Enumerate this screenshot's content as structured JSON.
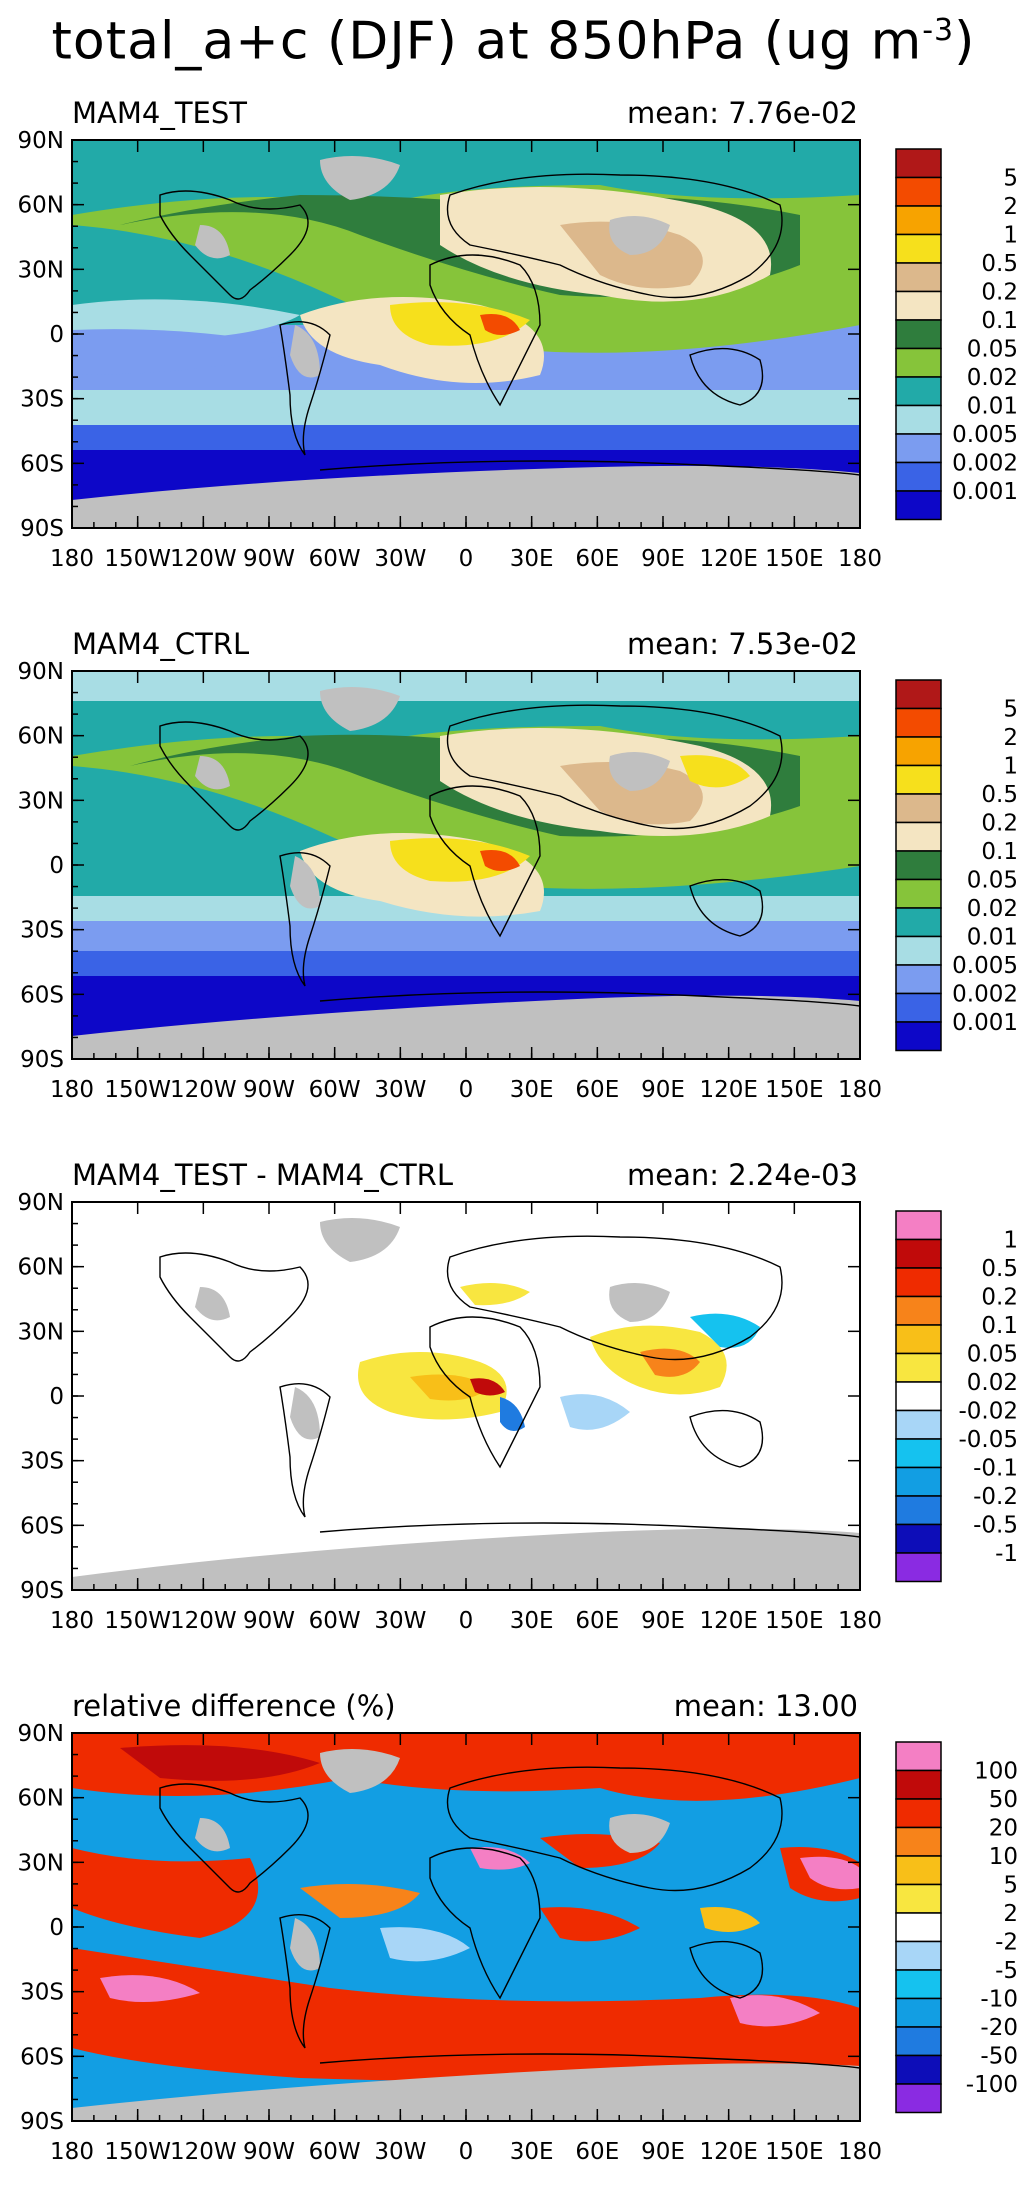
{
  "figure": {
    "title_main": "total_a+c (DJF) at 850hPa (ug m",
    "title_exp": "-3",
    "title_close": ")"
  },
  "axes": {
    "lon_labels": [
      "180",
      "150W",
      "120W",
      "90W",
      "60W",
      "30W",
      "0",
      "30E",
      "60E",
      "90E",
      "120E",
      "150E",
      "180"
    ],
    "lat_labels": [
      "90N",
      "60N",
      "30N",
      "0",
      "30S",
      "60S",
      "90S"
    ]
  },
  "colors": {
    "conc": [
      "#0d07c8",
      "#3a63e6",
      "#7b9cf0",
      "#a8dde4",
      "#22aaa8",
      "#86c43a",
      "#2f7d3d",
      "#f4e5c2",
      "#dcb88c",
      "#f6e01c",
      "#f7a300",
      "#f34b00",
      "#b01818"
    ],
    "diff": [
      "#8a2be2",
      "#0d0db8",
      "#1f7be0",
      "#129ee3",
      "#15c2ef",
      "#a8d6f7",
      "#ffffff",
      "#f8e640",
      "#f8bf18",
      "#f7831a",
      "#ef2b00",
      "#c00a0a",
      "#f47fc4"
    ],
    "land_missing": "#c0c0c0"
  },
  "panels": [
    {
      "name": "MAM4_TEST",
      "title": "MAM4_TEST",
      "mean": "mean: 7.76e-02",
      "scale": "conc",
      "levels": [
        "0.001",
        "0.002",
        "0.005",
        "0.01",
        "0.02",
        "0.05",
        "0.1",
        "0.2",
        "0.5",
        "1",
        "2",
        "5"
      ]
    },
    {
      "name": "MAM4_CTRL",
      "title": "MAM4_CTRL",
      "mean": "mean: 7.53e-02",
      "scale": "conc",
      "levels": [
        "0.001",
        "0.002",
        "0.005",
        "0.01",
        "0.02",
        "0.05",
        "0.1",
        "0.2",
        "0.5",
        "1",
        "2",
        "5"
      ]
    },
    {
      "name": "absolute-difference",
      "title": "MAM4_TEST - MAM4_CTRL",
      "mean": "mean: 2.24e-03",
      "scale": "diff",
      "levels": [
        "-1",
        "-0.5",
        "-0.2",
        "-0.1",
        "-0.05",
        "-0.02",
        "0.02",
        "0.05",
        "0.1",
        "0.2",
        "0.5",
        "1"
      ]
    },
    {
      "name": "relative-difference",
      "title": "relative difference (%)",
      "mean": "mean: 13.00",
      "scale": "diff",
      "levels": [
        "-100",
        "-50",
        "-20",
        "-10",
        "-5",
        "-2",
        "2",
        "5",
        "10",
        "20",
        "50",
        "100"
      ]
    }
  ]
}
